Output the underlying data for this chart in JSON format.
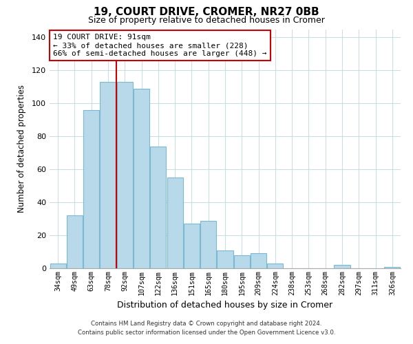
{
  "title": "19, COURT DRIVE, CROMER, NR27 0BB",
  "subtitle": "Size of property relative to detached houses in Cromer",
  "xlabel": "Distribution of detached houses by size in Cromer",
  "ylabel": "Number of detached properties",
  "bar_labels": [
    "34sqm",
    "49sqm",
    "63sqm",
    "78sqm",
    "92sqm",
    "107sqm",
    "122sqm",
    "136sqm",
    "151sqm",
    "165sqm",
    "180sqm",
    "195sqm",
    "209sqm",
    "224sqm",
    "238sqm",
    "253sqm",
    "268sqm",
    "282sqm",
    "297sqm",
    "311sqm",
    "326sqm"
  ],
  "bar_values": [
    3,
    32,
    96,
    113,
    113,
    109,
    74,
    55,
    27,
    29,
    11,
    8,
    9,
    3,
    0,
    0,
    0,
    2,
    0,
    0,
    1
  ],
  "bar_color": "#b8d9ea",
  "bar_edge_color": "#7ab8d4",
  "ylim": [
    0,
    145
  ],
  "yticks": [
    0,
    20,
    40,
    60,
    80,
    100,
    120,
    140
  ],
  "vline_color": "#cc0000",
  "vline_index": 3.5,
  "annotation_title": "19 COURT DRIVE: 91sqm",
  "annotation_line1": "← 33% of detached houses are smaller (228)",
  "annotation_line2": "66% of semi-detached houses are larger (448) →",
  "footer1": "Contains HM Land Registry data © Crown copyright and database right 2024.",
  "footer2": "Contains public sector information licensed under the Open Government Licence v3.0.",
  "background_color": "#ffffff",
  "grid_color": "#ccdde8"
}
